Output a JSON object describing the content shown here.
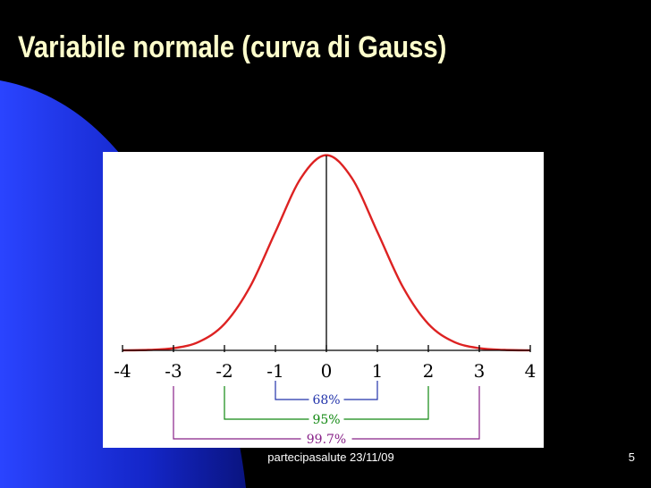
{
  "slide": {
    "title": "Variabile normale (curva di Gauss)",
    "footer": "partecipasalute 23/11/09",
    "page_number": "5"
  },
  "colors": {
    "background": "#000000",
    "title": "#ffffcc",
    "background_swoosh": "#1a2ee6",
    "curve": "#dd2222",
    "axis": "#000000",
    "band_68": "#2233aa",
    "band_95": "#118811",
    "band_997": "#882288"
  },
  "chart_data": {
    "type": "line",
    "title": "",
    "xlabel": "",
    "ylabel": "",
    "xlim": [
      -4,
      4
    ],
    "ylim": [
      0,
      0.4
    ],
    "grid": false,
    "x_ticks": [
      "-4",
      "-3",
      "-2",
      "-1",
      "0",
      "1",
      "2",
      "3",
      "4"
    ],
    "series": [
      {
        "x": [
          -4,
          -3.5,
          -3,
          -2.5,
          -2,
          -1.5,
          -1,
          -0.5,
          0,
          0.5,
          1,
          1.5,
          2,
          2.5,
          3,
          3.5,
          4
        ],
        "y": [
          0.0001,
          0.0009,
          0.0044,
          0.0175,
          0.054,
          0.1295,
          0.242,
          0.3521,
          0.3989,
          0.3521,
          0.242,
          0.1295,
          0.054,
          0.0175,
          0.0044,
          0.0009,
          0.0001
        ]
      }
    ],
    "annotations": [
      {
        "label": "68%",
        "from": -1,
        "to": 1,
        "color": "#2233aa"
      },
      {
        "label": "95%",
        "from": -2,
        "to": 2,
        "color": "#118811"
      },
      {
        "label": "99.7%",
        "from": -3,
        "to": 3,
        "color": "#882288"
      }
    ]
  }
}
